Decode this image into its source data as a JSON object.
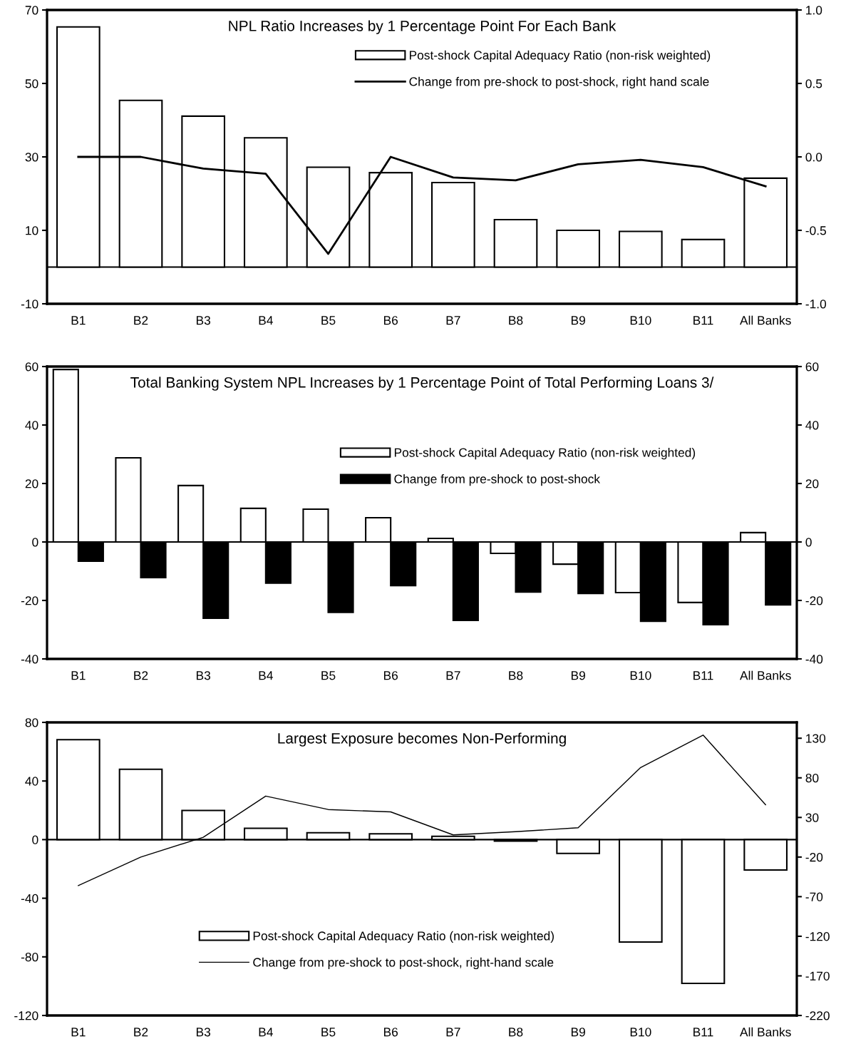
{
  "chart_data": [
    {
      "type": "bar",
      "title": "NPL Ratio Increases by 1 Percentage Point For Each Bank",
      "categories": [
        "B1",
        "B2",
        "B3",
        "B4",
        "B5",
        "B6",
        "B7",
        "B8",
        "B9",
        "B10",
        "B11",
        "All Banks"
      ],
      "series": [
        {
          "name": "Post-shock Capital Adequacy Ratio (non-risk weighted)",
          "type": "bar",
          "color": "#ffffff",
          "values": [
            65.4,
            45.4,
            41.1,
            35.2,
            27.2,
            25.7,
            23.0,
            12.9,
            10.0,
            9.7,
            7.5,
            24.2
          ]
        },
        {
          "name": "Change from pre-shock to post-shock, right hand scale",
          "type": "line",
          "axis": "y2",
          "color": "#000000",
          "values": [
            0.0,
            0.0,
            -0.08,
            -0.115,
            -0.66,
            0.0,
            -0.14,
            -0.16,
            -0.05,
            -0.02,
            -0.07,
            -0.2
          ]
        }
      ],
      "ylim": [
        -10,
        70
      ],
      "yticks": [
        -10,
        10,
        30,
        50,
        70
      ],
      "y2lim": [
        -1.0,
        1.0
      ],
      "y2ticks": [
        {
          "value": -1.0,
          "label": "-1.0"
        },
        {
          "value": -0.5,
          "label": "-0.5"
        },
        {
          "value": 0.0,
          "label": "0.0"
        },
        {
          "value": 0.5,
          "label": "0.5"
        },
        {
          "value": 1.0,
          "label": "1.0"
        }
      ],
      "ref_lines": [
        {
          "axis": "y",
          "value": 0,
          "color": "#000000"
        }
      ],
      "legend": "top right",
      "marker": "none",
      "line_style": "solid"
    },
    {
      "type": "bar",
      "title": "Total Banking System NPL Increases by 1 Percentage Point of Total Performing Loans 3/",
      "categories": [
        "B1",
        "B2",
        "B3",
        "B4",
        "B5",
        "B6",
        "B7",
        "B8",
        "B9",
        "B10",
        "B11",
        "All Banks"
      ],
      "series": [
        {
          "name": "Post-shock Capital Adequacy Ratio (non-risk weighted)",
          "color": "#ffffff",
          "values": [
            59.0,
            28.8,
            19.3,
            11.5,
            11.2,
            8.3,
            1.2,
            -3.9,
            -7.6,
            -17.3,
            -20.7,
            3.2
          ]
        },
        {
          "name": "Change from pre-shock to post-shock",
          "color": "#000000",
          "values": [
            -6.6,
            -12.2,
            -26.1,
            -14.1,
            -24.1,
            -14.9,
            -26.8,
            -17.1,
            -17.6,
            -27.1,
            -28.3,
            -21.5
          ]
        }
      ],
      "ylim": [
        -40,
        60
      ],
      "yticks": [
        -40,
        -20,
        0,
        20,
        40,
        60
      ],
      "y2lim": [
        -40,
        60
      ],
      "y2ticks": [
        -40,
        -20,
        0,
        20,
        40,
        60
      ],
      "ref_lines": [
        {
          "axis": "y",
          "value": 0,
          "color": "#000000"
        }
      ],
      "legend": "top right"
    },
    {
      "type": "bar",
      "title": "Largest Exposure becomes Non-Performing",
      "categories": [
        "B1",
        "B2",
        "B3",
        "B4",
        "B5",
        "B6",
        "B7",
        "B8",
        "B9",
        "B10",
        "B11",
        "All Banks"
      ],
      "series": [
        {
          "name": "Post-shock Capital Adequacy Ratio (non-risk weighted)",
          "type": "bar",
          "color": "#ffffff",
          "values": [
            68.2,
            48.0,
            19.9,
            7.7,
            4.7,
            4.0,
            2.3,
            -1.0,
            -9.4,
            -69.9,
            -98.1,
            -20.7
          ]
        },
        {
          "name": "Change from pre-shock to post-shock, right-hand scale",
          "type": "line",
          "axis": "y2",
          "color": "#000000",
          "values": [
            -56,
            -20,
            5,
            57,
            40,
            37,
            8,
            12,
            17,
            93,
            134,
            46
          ]
        }
      ],
      "ylim": [
        -120,
        80
      ],
      "yticks": [
        -120,
        -80,
        -40,
        0,
        40,
        80
      ],
      "y2lim": [
        -220,
        150
      ],
      "y2ticks": [
        -220,
        -170,
        -120,
        -70,
        -20,
        30,
        80,
        130
      ],
      "ref_lines": [
        {
          "axis": "y",
          "value": 0,
          "color": "#000000"
        }
      ],
      "legend": "bottom",
      "marker": "none",
      "line_style": "solid"
    }
  ]
}
